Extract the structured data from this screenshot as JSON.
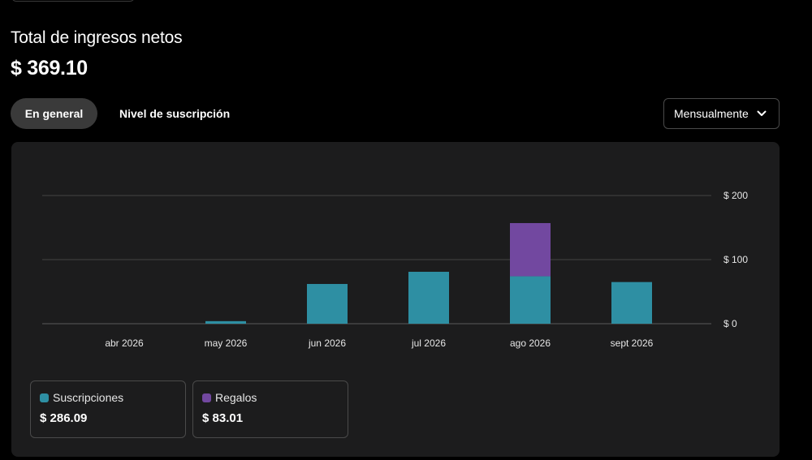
{
  "header": {
    "title": "Total de ingresos netos",
    "amount": "$ 369.10"
  },
  "tabs": [
    {
      "label": "En general",
      "active": true
    },
    {
      "label": "Nivel de suscripción",
      "active": false
    }
  ],
  "period_select": {
    "value": "Mensualmente",
    "icon": "chevron-down-icon"
  },
  "colors": {
    "subscriptions": "#2e8fa3",
    "gifts": "#7248a0",
    "panel": "#1c1c1d",
    "background": "#000000"
  },
  "chart_data": {
    "type": "bar",
    "stacked": true,
    "categories": [
      "abr 2026",
      "may 2026",
      "jun 2026",
      "jul 2026",
      "ago 2026",
      "sept 2026"
    ],
    "series": [
      {
        "name": "Suscripciones",
        "values": [
          0,
          4,
          62,
          81,
          74,
          65
        ],
        "color": "#2e8fa3"
      },
      {
        "name": "Regalos",
        "values": [
          0,
          0,
          0,
          0,
          83,
          0
        ],
        "color": "#7248a0"
      }
    ],
    "y_ticks": [
      "$ 0",
      "$ 100",
      "$ 200"
    ],
    "ylim": [
      0,
      200
    ],
    "grid": true,
    "y_axis_side": "right"
  },
  "legend": [
    {
      "label": "Suscripciones",
      "value": "$ 286.09",
      "color": "#2e8fa3"
    },
    {
      "label": "Regalos",
      "value": "$ 83.01",
      "color": "#7248a0"
    }
  ]
}
